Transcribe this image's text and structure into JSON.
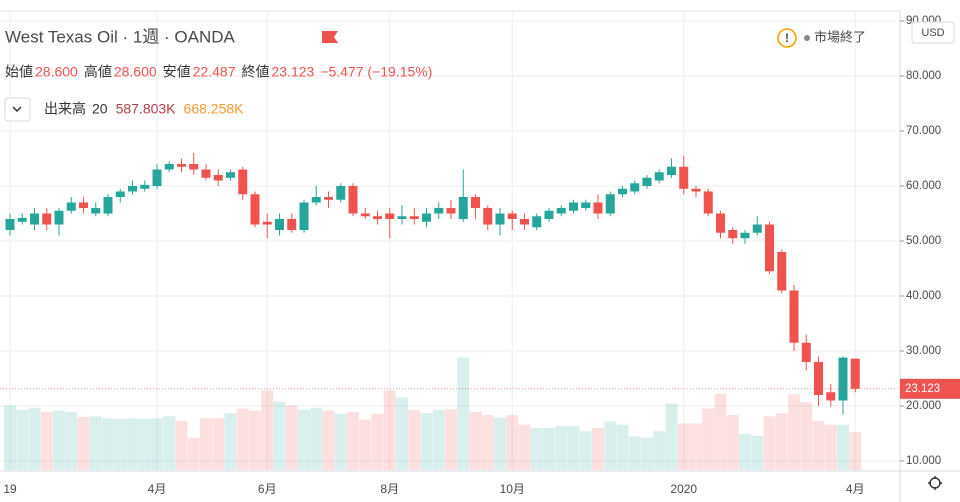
{
  "chart_data": {
    "type": "candlestick",
    "title": "West Texas Oil · 1週 · OANDA",
    "status": "市場終了",
    "currency": "USD",
    "legend": {
      "items": [
        {
          "label": "始値",
          "value": "28.600"
        },
        {
          "label": "高値",
          "value": "28.600"
        },
        {
          "label": "安値",
          "value": "22.487"
        },
        {
          "label": "終値",
          "value": "23.123"
        }
      ],
      "change": "−5.477 (−19.15%)"
    },
    "volume_legend": {
      "label": "出来高",
      "period": "20",
      "value": "587.803K",
      "average": "668.258K"
    },
    "last_price_label": "23.123",
    "up_color": "#26a69a",
    "down_color": "#ef5350",
    "categories": [
      "19",
      null,
      null,
      null,
      null,
      null,
      null,
      null,
      null,
      null,
      null,
      null,
      "4月",
      null,
      null,
      null,
      null,
      null,
      null,
      null,
      null,
      "6月",
      null,
      null,
      null,
      null,
      null,
      null,
      null,
      null,
      null,
      "8月",
      null,
      null,
      null,
      null,
      null,
      null,
      null,
      null,
      null,
      "10月",
      null,
      null,
      null,
      null,
      null,
      null,
      null,
      null,
      null,
      null,
      null,
      null,
      null,
      "2020",
      null,
      null,
      null,
      null,
      null,
      null,
      null,
      null,
      null,
      null,
      null,
      null,
      null,
      "4月"
    ],
    "open": [
      52,
      53.5,
      53,
      55,
      53,
      55.5,
      57,
      55,
      55,
      58,
      59,
      59.5,
      60,
      63,
      64,
      64,
      63,
      62,
      61.5,
      63,
      58.5,
      53.5,
      52,
      54,
      52,
      57,
      58,
      57.5,
      60,
      55,
      54.5,
      55,
      54,
      54.5,
      53.5,
      55,
      56,
      54,
      58,
      56,
      53,
      55,
      54,
      52.5,
      54,
      55,
      55.5,
      56,
      57,
      55,
      58.5,
      59,
      60,
      61,
      62,
      63.5,
      59.5,
      59,
      55,
      52,
      50.5,
      51.5,
      53,
      48,
      41,
      31.5,
      28,
      22.5,
      21,
      28.6
    ],
    "high": [
      55,
      55,
      56,
      56,
      56,
      58,
      58,
      57,
      58.5,
      59.5,
      61,
      61,
      64,
      64.5,
      65,
      66,
      64,
      63,
      63,
      63.5,
      59,
      55,
      55,
      55,
      57.5,
      60,
      59,
      60.5,
      60.5,
      56,
      55.5,
      56,
      56.5,
      56,
      56,
      57,
      57.5,
      63,
      58.5,
      56.5,
      56,
      55.5,
      55,
      55,
      56,
      56.5,
      57.5,
      57.5,
      58.5,
      59,
      60,
      61,
      62,
      63,
      65,
      65.5,
      60,
      59.5,
      55.5,
      52.5,
      52,
      54.5,
      53.5,
      48.5,
      42,
      33,
      29,
      24,
      29,
      28.6
    ],
    "low": [
      51,
      53,
      52,
      52,
      51,
      55,
      55,
      54.5,
      54.5,
      57,
      58.5,
      59,
      59.5,
      62.5,
      62.5,
      62,
      61,
      60,
      61,
      57.5,
      52.5,
      50.5,
      51,
      51.5,
      51.5,
      56.5,
      56,
      57,
      54.5,
      54,
      53,
      50.5,
      53,
      53,
      52.5,
      54,
      54,
      53.5,
      54,
      52,
      51,
      52,
      52,
      52,
      53.5,
      54.5,
      55,
      55.5,
      54,
      54.5,
      58,
      58.5,
      59.5,
      60.5,
      61.5,
      58.5,
      58,
      54.5,
      50.5,
      49.5,
      49.5,
      51,
      44,
      40.5,
      30,
      26.5,
      20,
      20,
      18.5,
      22.487
    ],
    "close": [
      54,
      54.2,
      55,
      53,
      55.5,
      57,
      56,
      56,
      58,
      59,
      60,
      60.2,
      63,
      64,
      63.5,
      63,
      61.5,
      61,
      62.5,
      58.5,
      53,
      53,
      54,
      52,
      57,
      58,
      57.5,
      60,
      55,
      54.5,
      54,
      54,
      54.5,
      54,
      55,
      56,
      55,
      58,
      56,
      53,
      55,
      54,
      53,
      54.5,
      55.5,
      56,
      57,
      57,
      55,
      58.5,
      59.5,
      60.5,
      61.5,
      62.5,
      63.5,
      59.5,
      59,
      55,
      51.5,
      50.5,
      51.5,
      53,
      44.5,
      41,
      31.5,
      28,
      22,
      21,
      28.8,
      23.123
    ],
    "volume": [
      1000000,
      930000,
      960000,
      900000,
      920000,
      900000,
      820000,
      830000,
      800000,
      790000,
      800000,
      790000,
      800000,
      830000,
      760000,
      500000,
      800000,
      800000,
      880000,
      950000,
      920000,
      1230000,
      1060000,
      1000000,
      930000,
      960000,
      920000,
      870000,
      900000,
      780000,
      870000,
      1230000,
      1120000,
      930000,
      880000,
      930000,
      940000,
      1740000,
      900000,
      850000,
      810000,
      850000,
      700000,
      650000,
      650000,
      680000,
      680000,
      600000,
      650000,
      750000,
      700000,
      520000,
      500000,
      600000,
      1030000,
      720000,
      720000,
      950000,
      1180000,
      850000,
      560000,
      530000,
      830000,
      880000,
      1170000,
      1050000,
      760000,
      700000,
      700000,
      587803
    ],
    "ylim": [
      8.36,
      91.64
    ],
    "yticks": [
      {
        "value": 90,
        "label": "90.000"
      },
      {
        "value": 80,
        "label": "80.000"
      },
      {
        "value": 70,
        "label": "70.000"
      },
      {
        "value": 60,
        "label": "60.000"
      },
      {
        "value": 50,
        "label": "50.000"
      },
      {
        "value": 40,
        "label": "40.000"
      },
      {
        "value": 30,
        "label": "30.000"
      },
      {
        "value": 20,
        "label": "20.000"
      },
      {
        "value": 10,
        "label": "10.000"
      }
    ],
    "grid": true
  }
}
